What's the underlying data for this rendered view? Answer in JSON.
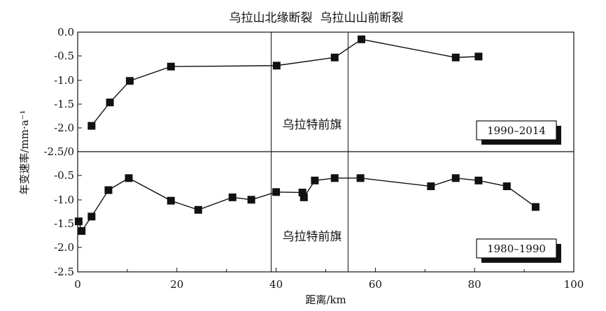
{
  "chart_data": {
    "type": "line",
    "xlabel": "距离/km",
    "ylabel": "年变速率/mm·a⁻¹",
    "xlim": [
      0,
      100
    ],
    "xticks": [
      "0",
      "20",
      "40",
      "60",
      "80",
      "100"
    ],
    "fault_labels": [
      "乌拉山北缘断裂",
      "乌拉山山前断裂"
    ],
    "fault_x": [
      39,
      54.5
    ],
    "grid": false,
    "panels": [
      {
        "name": "1990–2014",
        "legend_label": "1990–2014",
        "location_label": "乌拉特前旗",
        "ylim": [
          -2.5,
          0.0
        ],
        "yticks": [
          "0.0",
          "-0.5",
          "-1.0",
          "-1.5",
          "-2.0",
          "-2.5/0"
        ],
        "x": [
          2.8,
          6.5,
          10.5,
          18.8,
          40.1,
          51.8,
          57.2,
          76.2,
          80.8
        ],
        "y": [
          -1.96,
          -1.47,
          -1.02,
          -0.72,
          -0.7,
          -0.53,
          -0.15,
          -0.53,
          -0.51
        ]
      },
      {
        "name": "1980–1990",
        "legend_label": "1980–1990",
        "location_label": "乌拉特前旗",
        "ylim": [
          -2.5,
          0.0
        ],
        "yticks": [
          "-0.5",
          "-1.0",
          "-1.5",
          "-2.0",
          "-2.5"
        ],
        "x": [
          0.2,
          0.8,
          2.8,
          6.2,
          10.3,
          18.8,
          24.3,
          31.2,
          35.0,
          40.0,
          45.3,
          45.6,
          47.8,
          51.8,
          57.0,
          71.2,
          76.2,
          80.8,
          86.5,
          92.3
        ],
        "y": [
          -1.45,
          -1.65,
          -1.35,
          -0.8,
          -0.55,
          -1.02,
          -1.21,
          -0.95,
          -1.0,
          -0.84,
          -0.85,
          -0.95,
          -0.6,
          -0.55,
          -0.55,
          -0.72,
          -0.55,
          -0.6,
          -0.72,
          -1.15
        ]
      }
    ]
  }
}
